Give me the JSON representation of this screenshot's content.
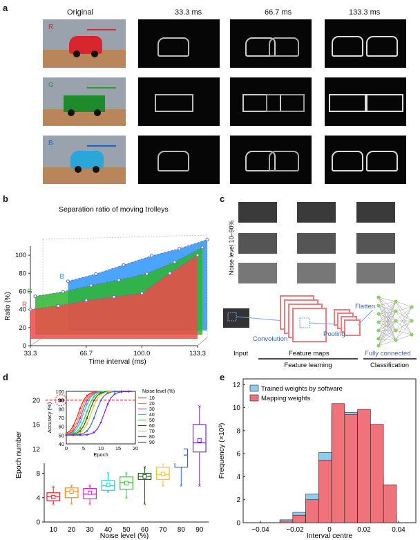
{
  "panel_a": {
    "label": "a",
    "col_original": "Original",
    "col_t1": "33.3 ms",
    "col_t2": "66.7 ms",
    "col_t3": "133.3 ms",
    "row_letters": [
      "R",
      "G",
      "B"
    ],
    "colors": {
      "R": "#e0202a",
      "G": "#2f9a33",
      "B": "#1b5fc9"
    }
  },
  "panel_b": {
    "label": "b",
    "title": "Separation ratio of moving trolleys",
    "chart_data": {
      "type": "area",
      "title": "Separation ratio of moving trolleys",
      "xlabel": "Time interval (ms)",
      "ylabel": "Ratio (%)",
      "x_ticks": [
        "33.3",
        "66.7",
        "100.0",
        "133.3"
      ],
      "y_ticks": [
        "0",
        "20",
        "40",
        "60",
        "80",
        "100"
      ],
      "ylim": [
        0,
        110
      ],
      "series": [
        {
          "name": "R",
          "color": "#f04a4a",
          "x": [
            33.3,
            50,
            66.7,
            83.3,
            100,
            116.7,
            133.3
          ],
          "values": [
            40,
            44,
            50,
            54,
            58,
            80,
            100
          ]
        },
        {
          "name": "G",
          "color": "#2db52d",
          "x": [
            33.3,
            50,
            66.7,
            83.3,
            100,
            116.7,
            133.3
          ],
          "values": [
            50,
            55,
            62,
            68,
            75,
            88,
            104
          ]
        },
        {
          "name": "B",
          "color": "#2c95ff",
          "x": [
            50,
            66.7,
            83.3,
            100,
            116.7,
            133.3
          ],
          "values": [
            62,
            70,
            80,
            90,
            98,
            108
          ]
        }
      ]
    }
  },
  "panel_c": {
    "label": "c",
    "noise_label": "Noise level 10–90%",
    "input": "Input",
    "convolution": "Convolution",
    "feature_maps": "Feature maps",
    "pooling": "Pooling",
    "flatten": "Flatten",
    "fully_connected": "Fully connected",
    "feature_learning": "Feature learning",
    "classification": "Classification"
  },
  "panel_d": {
    "label": "d",
    "chart_data": {
      "type": "box",
      "xlabel": "Noise level (%)",
      "ylabel": "Epoch number",
      "categories": [
        "10",
        "20",
        "30",
        "40",
        "50",
        "60",
        "70",
        "80",
        "90"
      ],
      "colors": [
        "#e2232c",
        "#ff8a00",
        "#e31dd0",
        "#00d6d9",
        "#2fcf2f",
        "#1c5a1c",
        "#f2c316",
        "#2a6cd6",
        "#7a1fc8"
      ],
      "y_ticks": [
        "0",
        "4",
        "8",
        "12",
        "16",
        "20"
      ],
      "boxes": [
        {
          "min": 3,
          "q1": 3.5,
          "median": 4.2,
          "q3": 4.8,
          "max": 5.8,
          "mean": 4.1
        },
        {
          "min": 3,
          "q1": 4,
          "median": 5,
          "q3": 5.6,
          "max": 6,
          "mean": 5
        },
        {
          "min": 3,
          "q1": 3.8,
          "median": 4.6,
          "q3": 5.5,
          "max": 6,
          "mean": 4.8
        },
        {
          "min": 5,
          "q1": 5.2,
          "median": 6,
          "q3": 6.8,
          "max": 8,
          "mean": 6.1
        },
        {
          "min": 4,
          "q1": 5.4,
          "median": 6.5,
          "q3": 7.4,
          "max": 8,
          "mean": 6.4
        },
        {
          "min": 3,
          "q1": 7,
          "median": 7.5,
          "q3": 8,
          "max": 9,
          "mean": 7.5
        },
        {
          "min": 6,
          "q1": 7,
          "median": 7.8,
          "q3": 9,
          "max": 11,
          "mean": 7.9
        },
        {
          "min": 6,
          "q1": 9,
          "median": 11,
          "q3": 12,
          "max": 14,
          "mean": 10.2
        },
        {
          "min": 6,
          "q1": 11.5,
          "median": 13,
          "q3": 16,
          "max": 19,
          "mean": 13.4
        }
      ],
      "inset": {
        "xlabel": "Epoch",
        "ylabel": "Accuracy (%)",
        "x_ticks": [
          "0",
          "5",
          "10",
          "15",
          "20"
        ],
        "y_ticks": [
          "40",
          "50",
          "60",
          "70",
          "80",
          "90",
          "100"
        ],
        "legend_title": "Noise level (%)",
        "marker_label": "90",
        "series": [
          {
            "name": "10",
            "color": "#e2232c",
            "start": 3.5
          },
          {
            "name": "20",
            "color": "#ff8a00",
            "start": 4
          },
          {
            "name": "30",
            "color": "#e31dd0",
            "start": 4.5
          },
          {
            "name": "40",
            "color": "#00d6d9",
            "start": 5
          },
          {
            "name": "50",
            "color": "#2fcf2f",
            "start": 5.8
          },
          {
            "name": "60",
            "color": "#1c5a1c",
            "start": 6.5
          },
          {
            "name": "70",
            "color": "#f2c316",
            "start": 7.2
          },
          {
            "name": "80",
            "color": "#2a6cd6",
            "start": 8.5
          },
          {
            "name": "90",
            "color": "#7a1fc8",
            "start": 11
          }
        ]
      }
    }
  },
  "panel_e": {
    "label": "e",
    "chart_data": {
      "type": "histogram",
      "xlabel": "Interval centre",
      "ylabel": "Frequency (×10³)",
      "x_ticks": [
        "−0.04",
        "−0.02",
        "0",
        "0.02",
        "0.04"
      ],
      "y_ticks": [
        "0",
        "2",
        "4",
        "6",
        "8",
        "10",
        "12"
      ],
      "ylim": [
        0,
        12.5
      ],
      "bin_centres": [
        -0.025,
        -0.0175,
        -0.01,
        -0.0025,
        0.005,
        0.0125,
        0.02,
        0.0275,
        0.035
      ],
      "series": [
        {
          "name": "Trained weights by software",
          "color": "#8ccdf2",
          "values": [
            0.25,
            0.9,
            2.5,
            6.1,
            9.75,
            9.6,
            8.55,
            4,
            0.8
          ]
        },
        {
          "name": "Mapping weights",
          "color": "#f0727a",
          "values": [
            0.15,
            0.65,
            2,
            5.45,
            10.35,
            9.4,
            9.85,
            8.55,
            3.3
          ]
        }
      ],
      "legend_labels": [
        "Trained weights by software",
        "Mapping weights"
      ]
    }
  }
}
